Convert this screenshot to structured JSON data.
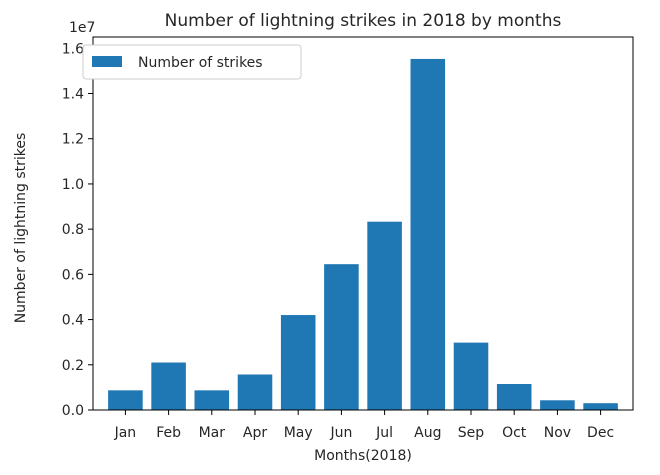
{
  "chart_data": {
    "type": "bar",
    "title": "Number of lightning strikes in 2018 by months",
    "xlabel": "Months(2018)",
    "ylabel": "Number of lightning strikes",
    "y_offset_label": "1e7",
    "categories": [
      "Jan",
      "Feb",
      "Mar",
      "Apr",
      "May",
      "Jun",
      "Jul",
      "Aug",
      "Sep",
      "Oct",
      "Nov",
      "Dec"
    ],
    "series": [
      {
        "name": "Number of strikes",
        "color": "#1f77b4",
        "values": [
          0.087,
          0.21,
          0.087,
          0.157,
          0.42,
          0.645,
          0.833,
          1.553,
          0.298,
          0.115,
          0.043,
          0.03
        ]
      }
    ],
    "ylim": [
      0,
      1.65
    ],
    "yticks": [
      "0.0",
      "0.2",
      "0.4",
      "0.6",
      "0.8",
      "1.0",
      "1.2",
      "1.4",
      "1.6"
    ],
    "legend_position": "top-left",
    "grid": false
  }
}
